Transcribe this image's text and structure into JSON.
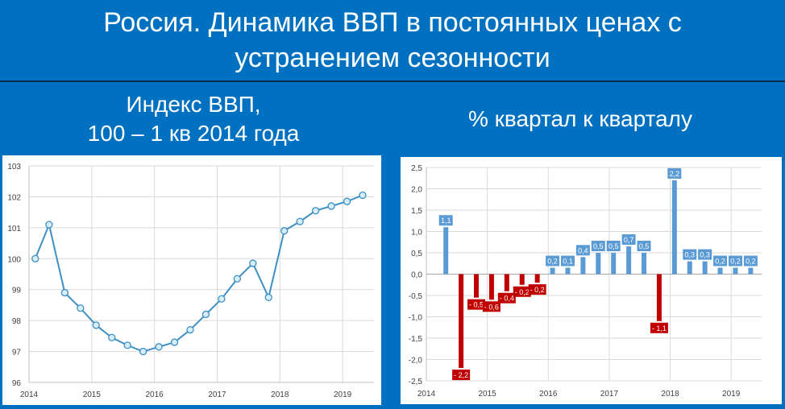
{
  "header": {
    "title_line1": "Россия. Динамика ВВП в постоянных ценах с",
    "title_line2": "устранением сезонности",
    "left_subtitle_line1": "Индекс ВВП,",
    "left_subtitle_line2": "100 – 1 кв 2014 года",
    "right_subtitle": "% квартал к кварталу"
  },
  "colors": {
    "background": "#0070c0",
    "line": "#3d8fc4",
    "marker_fill": "#d6eef7",
    "bar_positive": "#5b9bd5",
    "bar_negative": "#c00000"
  },
  "chart_data": [
    {
      "type": "line",
      "ylim": [
        96,
        103
      ],
      "yticks": [
        "96",
        "97",
        "98",
        "99",
        "100",
        "101",
        "102",
        "103"
      ],
      "xticks": [
        "2014",
        "2015",
        "2016",
        "2017",
        "2018",
        "2019"
      ],
      "xlim": [
        2014,
        2019.5
      ],
      "grid": true,
      "series": [
        {
          "x": [
            2014.1,
            2014.32,
            2014.57,
            2014.82,
            2015.07,
            2015.32,
            2015.57,
            2015.82,
            2016.07,
            2016.32,
            2016.57,
            2016.82,
            2017.07,
            2017.32,
            2017.57,
            2017.82,
            2018.07,
            2018.32,
            2018.57,
            2018.82,
            2019.07,
            2019.32
          ],
          "values": [
            100.0,
            101.1,
            98.9,
            98.4,
            97.85,
            97.45,
            97.2,
            97.0,
            97.15,
            97.3,
            97.7,
            98.2,
            98.7,
            99.35,
            99.85,
            98.75,
            100.9,
            101.2,
            101.55,
            101.7,
            101.85,
            102.05
          ]
        }
      ]
    },
    {
      "type": "bar",
      "ylim": [
        -2.5,
        2.5
      ],
      "yticks": [
        "-2,5",
        "-2,0",
        "-1,5",
        "-1,0",
        "-0,5",
        "0,0",
        "0,5",
        "1,0",
        "1,5",
        "2,0",
        "2,5"
      ],
      "xticks": [
        "2014",
        "2015",
        "2016",
        "2017",
        "2018",
        "2019"
      ],
      "xlim": [
        2014,
        2019.5
      ],
      "grid": true,
      "bars": [
        {
          "x": 2014.32,
          "value": 1.1,
          "label": "1,1"
        },
        {
          "x": 2014.57,
          "value": -2.2,
          "label": "- 2,2"
        },
        {
          "x": 2014.82,
          "value": -0.55,
          "label": "- 0,5"
        },
        {
          "x": 2015.07,
          "value": -0.6,
          "label": "- 0,6"
        },
        {
          "x": 2015.32,
          "value": -0.4,
          "label": "- 0,4"
        },
        {
          "x": 2015.57,
          "value": -0.25,
          "label": "- 0,2"
        },
        {
          "x": 2015.82,
          "value": -0.2,
          "label": "- 0,2"
        },
        {
          "x": 2016.07,
          "value": 0.15,
          "label": "0,2"
        },
        {
          "x": 2016.32,
          "value": 0.15,
          "label": "0,1"
        },
        {
          "x": 2016.57,
          "value": 0.4,
          "label": "0,4"
        },
        {
          "x": 2016.82,
          "value": 0.5,
          "label": "0,5"
        },
        {
          "x": 2017.07,
          "value": 0.5,
          "label": "0,5"
        },
        {
          "x": 2017.32,
          "value": 0.65,
          "label": "0,7"
        },
        {
          "x": 2017.57,
          "value": 0.5,
          "label": "0,5"
        },
        {
          "x": 2017.82,
          "value": -1.1,
          "label": "- 1,1"
        },
        {
          "x": 2018.07,
          "value": 2.2,
          "label": "2,2"
        },
        {
          "x": 2018.32,
          "value": 0.3,
          "label": "0,3"
        },
        {
          "x": 2018.57,
          "value": 0.3,
          "label": "0,3"
        },
        {
          "x": 2018.82,
          "value": 0.15,
          "label": "0,2"
        },
        {
          "x": 2019.07,
          "value": 0.15,
          "label": "0,2"
        },
        {
          "x": 2019.32,
          "value": 0.15,
          "label": "0,2"
        }
      ]
    }
  ]
}
